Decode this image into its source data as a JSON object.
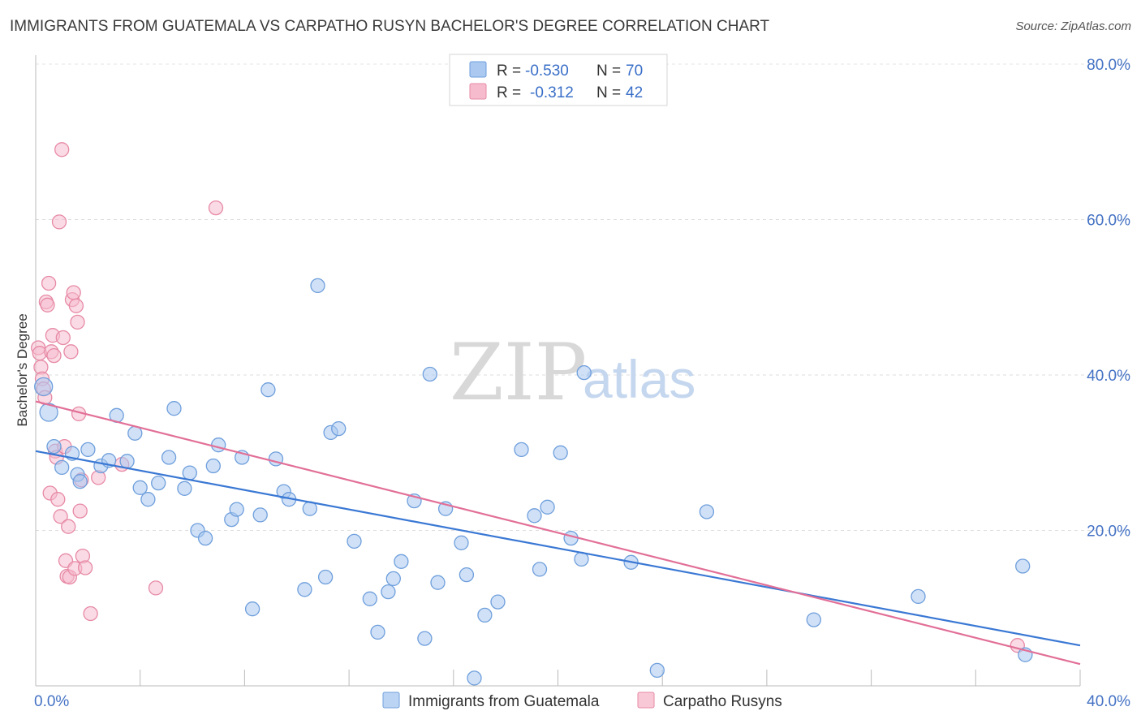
{
  "header": {
    "title": "IMMIGRANTS FROM GUATEMALA VS CARPATHO RUSYN BACHELOR'S DEGREE CORRELATION CHART",
    "source": "Source: ZipAtlas.com"
  },
  "watermark": {
    "zip": "ZIP",
    "atlas": "atlas"
  },
  "legend": {
    "rows": [
      {
        "r_label": "R =",
        "r_value": "-0.530",
        "n_label": "N =",
        "n_value": "70",
        "color": "#aac8f0",
        "stroke": "#6f9fdc"
      },
      {
        "r_label": "R =",
        "r_value": "-0.312",
        "n_label": "N =",
        "n_value": "42",
        "color": "#f6bccd",
        "stroke": "#e78aa6"
      }
    ]
  },
  "bottom_legend": [
    {
      "label": "Immigrants from Guatemala",
      "color": "#bcd4f4",
      "stroke": "#6f9fdc"
    },
    {
      "label": "Carpatho Rusyns",
      "color": "#f9c8d6",
      "stroke": "#e78aa6"
    }
  ],
  "chart_data": {
    "type": "scatter",
    "title": "IMMIGRANTS FROM GUATEMALA VS CARPATHO RUSYN BACHELOR'S DEGREE CORRELATION CHART",
    "xlabel": "",
    "ylabel": "Bachelor's Degree",
    "xlim": [
      0,
      40
    ],
    "ylim": [
      0,
      80
    ],
    "x_tick_labels": [
      "0.0%",
      "40.0%"
    ],
    "y_tick_labels": [
      "20.0%",
      "40.0%",
      "60.0%",
      "80.0%"
    ],
    "y_ticks": [
      20,
      40,
      60,
      80
    ],
    "grid": true,
    "series": [
      {
        "name": "Immigrants from Guatemala",
        "color": "#aac8f0",
        "stroke": "#6f9fdc",
        "line_color": "#3a78d4",
        "trend": [
          [
            0,
            30.2
          ],
          [
            40,
            5.2
          ]
        ],
        "points": [
          [
            0.3,
            38.5
          ],
          [
            0.5,
            35.2
          ],
          [
            0.7,
            30.8
          ],
          [
            1.0,
            28.1
          ],
          [
            1.4,
            29.9
          ],
          [
            1.6,
            27.2
          ],
          [
            1.7,
            26.3
          ],
          [
            2.0,
            30.4
          ],
          [
            2.5,
            28.3
          ],
          [
            2.8,
            29.0
          ],
          [
            3.1,
            34.8
          ],
          [
            3.5,
            28.9
          ],
          [
            3.8,
            32.5
          ],
          [
            4.0,
            25.5
          ],
          [
            4.3,
            24.0
          ],
          [
            4.7,
            26.1
          ],
          [
            5.1,
            29.4
          ],
          [
            5.3,
            35.7
          ],
          [
            5.7,
            25.4
          ],
          [
            5.9,
            27.4
          ],
          [
            6.2,
            20.0
          ],
          [
            6.5,
            19.0
          ],
          [
            6.8,
            28.3
          ],
          [
            7.0,
            31.0
          ],
          [
            7.5,
            21.4
          ],
          [
            7.7,
            22.7
          ],
          [
            7.9,
            29.4
          ],
          [
            8.6,
            22.0
          ],
          [
            8.3,
            9.9
          ],
          [
            8.9,
            38.1
          ],
          [
            9.2,
            29.2
          ],
          [
            9.5,
            25.0
          ],
          [
            9.7,
            24.0
          ],
          [
            10.3,
            12.4
          ],
          [
            10.5,
            22.8
          ],
          [
            10.8,
            51.5
          ],
          [
            11.1,
            14.0
          ],
          [
            11.3,
            32.6
          ],
          [
            11.6,
            33.1
          ],
          [
            12.2,
            18.6
          ],
          [
            12.8,
            11.2
          ],
          [
            13.1,
            6.9
          ],
          [
            13.5,
            12.1
          ],
          [
            13.7,
            13.8
          ],
          [
            14.0,
            16.0
          ],
          [
            14.5,
            23.8
          ],
          [
            14.9,
            6.1
          ],
          [
            15.1,
            40.1
          ],
          [
            15.4,
            13.3
          ],
          [
            15.7,
            22.8
          ],
          [
            16.3,
            18.4
          ],
          [
            16.5,
            14.3
          ],
          [
            16.8,
            1.0
          ],
          [
            17.2,
            9.1
          ],
          [
            17.7,
            10.8
          ],
          [
            18.6,
            30.4
          ],
          [
            19.1,
            21.9
          ],
          [
            19.3,
            15.0
          ],
          [
            19.6,
            23.0
          ],
          [
            20.1,
            30.0
          ],
          [
            20.5,
            19.0
          ],
          [
            20.9,
            16.3
          ],
          [
            21.0,
            40.3
          ],
          [
            22.8,
            15.9
          ],
          [
            23.8,
            2.0
          ],
          [
            25.7,
            22.4
          ],
          [
            29.8,
            8.5
          ],
          [
            33.8,
            11.5
          ],
          [
            37.8,
            15.4
          ],
          [
            37.9,
            4.0
          ]
        ]
      },
      {
        "name": "Carpatho Rusyns",
        "color": "#f6bccd",
        "stroke": "#e78aa6",
        "line_color": "#e26f97",
        "trend": [
          [
            0,
            36.6
          ],
          [
            40,
            2.8
          ]
        ],
        "points": [
          [
            0.1,
            43.5
          ],
          [
            0.15,
            42.8
          ],
          [
            0.2,
            41.0
          ],
          [
            0.25,
            39.5
          ],
          [
            0.3,
            38.2
          ],
          [
            0.35,
            37.1
          ],
          [
            0.4,
            49.4
          ],
          [
            0.45,
            49.0
          ],
          [
            0.5,
            51.8
          ],
          [
            0.55,
            24.8
          ],
          [
            0.6,
            43.0
          ],
          [
            0.65,
            45.1
          ],
          [
            0.7,
            42.5
          ],
          [
            0.75,
            30.2
          ],
          [
            0.8,
            29.4
          ],
          [
            0.85,
            24.0
          ],
          [
            0.9,
            59.7
          ],
          [
            0.95,
            21.8
          ],
          [
            1.0,
            69.0
          ],
          [
            1.05,
            44.8
          ],
          [
            1.1,
            30.8
          ],
          [
            1.15,
            16.1
          ],
          [
            1.2,
            14.1
          ],
          [
            1.25,
            20.5
          ],
          [
            1.3,
            14.0
          ],
          [
            1.35,
            43.0
          ],
          [
            1.4,
            49.7
          ],
          [
            1.45,
            50.6
          ],
          [
            1.5,
            15.1
          ],
          [
            1.55,
            48.9
          ],
          [
            1.6,
            46.8
          ],
          [
            1.65,
            35.0
          ],
          [
            1.7,
            22.5
          ],
          [
            1.75,
            26.5
          ],
          [
            1.8,
            16.7
          ],
          [
            1.9,
            15.2
          ],
          [
            2.1,
            9.3
          ],
          [
            2.4,
            26.8
          ],
          [
            3.3,
            28.5
          ],
          [
            4.6,
            12.6
          ],
          [
            6.9,
            61.5
          ],
          [
            37.6,
            5.2
          ]
        ]
      }
    ]
  }
}
